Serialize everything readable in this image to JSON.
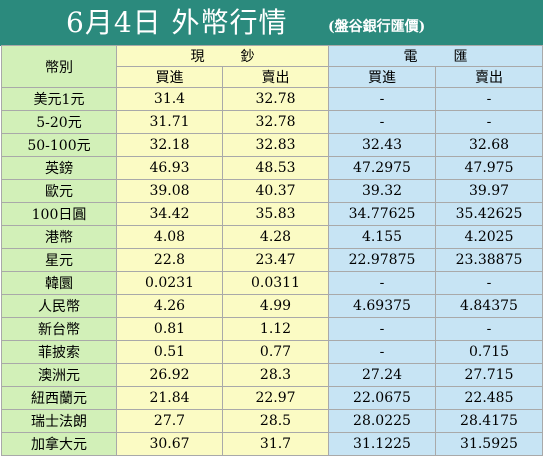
{
  "title": "6月4日 外幣行情",
  "subtitle": "(盤谷銀行匯價)",
  "header": {
    "currency": "幣別",
    "cash_chars": [
      "現",
      "鈔"
    ],
    "wire_chars": [
      "電",
      "匯"
    ],
    "buy": "買進",
    "sell": "賣出"
  },
  "rows": [
    {
      "name": "美元1元",
      "cash_buy": "31.4",
      "cash_sell": "32.78",
      "wire_buy": "-",
      "wire_sell": "-"
    },
    {
      "name": "5-20元",
      "cash_buy": "31.71",
      "cash_sell": "32.78",
      "wire_buy": "-",
      "wire_sell": "-"
    },
    {
      "name": "50-100元",
      "cash_buy": "32.18",
      "cash_sell": "32.83",
      "wire_buy": "32.43",
      "wire_sell": "32.68"
    },
    {
      "name": "英鎊",
      "cash_buy": "46.93",
      "cash_sell": "48.53",
      "wire_buy": "47.2975",
      "wire_sell": "47.975"
    },
    {
      "name": "歐元",
      "cash_buy": "39.08",
      "cash_sell": "40.37",
      "wire_buy": "39.32",
      "wire_sell": "39.97"
    },
    {
      "name": "100日圓",
      "cash_buy": "34.42",
      "cash_sell": "35.83",
      "wire_buy": "34.77625",
      "wire_sell": "35.42625"
    },
    {
      "name": "港幣",
      "cash_buy": "4.08",
      "cash_sell": "4.28",
      "wire_buy": "4.155",
      "wire_sell": "4.2025"
    },
    {
      "name": "星元",
      "cash_buy": "22.8",
      "cash_sell": "23.47",
      "wire_buy": "22.97875",
      "wire_sell": "23.38875"
    },
    {
      "name": "韓圜",
      "cash_buy": "0.0231",
      "cash_sell": "0.0311",
      "wire_buy": "-",
      "wire_sell": "-"
    },
    {
      "name": "人民幣",
      "cash_buy": "4.26",
      "cash_sell": "4.99",
      "wire_buy": "4.69375",
      "wire_sell": "4.84375"
    },
    {
      "name": "新台幣",
      "cash_buy": "0.81",
      "cash_sell": "1.12",
      "wire_buy": "-",
      "wire_sell": "-"
    },
    {
      "name": "菲披索",
      "cash_buy": "0.51",
      "cash_sell": "0.77",
      "wire_buy": "-",
      "wire_sell": "0.715"
    },
    {
      "name": "澳洲元",
      "cash_buy": "26.92",
      "cash_sell": "28.3",
      "wire_buy": "27.24",
      "wire_sell": "27.715"
    },
    {
      "name": "紐西蘭元",
      "cash_buy": "21.84",
      "cash_sell": "22.97",
      "wire_buy": "22.0675",
      "wire_sell": "22.485"
    },
    {
      "name": "瑞士法朗",
      "cash_buy": "27.7",
      "cash_sell": "28.5",
      "wire_buy": "28.0225",
      "wire_sell": "28.4175"
    },
    {
      "name": "加拿大元",
      "cash_buy": "30.67",
      "cash_sell": "31.7",
      "wire_buy": "31.1225",
      "wire_sell": "31.5925"
    }
  ],
  "colors": {
    "title_bar": "#2b8a7d",
    "name_column": "#d2f0b8",
    "cash_column": "#fbfbc4",
    "wire_column": "#c7e4f4",
    "grid": "#a9a9a9"
  }
}
